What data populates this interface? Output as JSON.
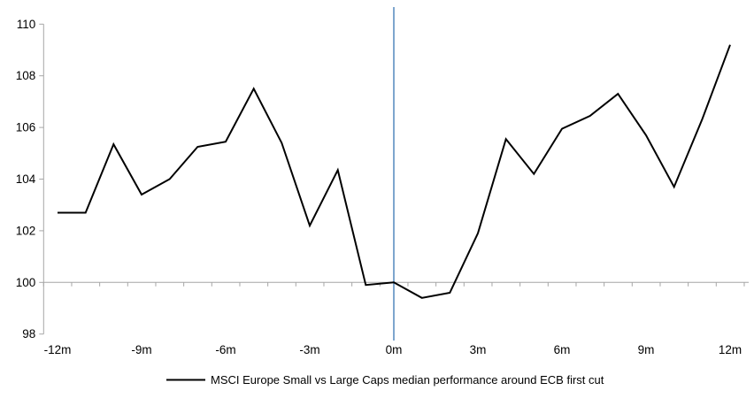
{
  "chart_data": {
    "type": "line",
    "title": "",
    "x_months": [
      -12,
      -11,
      -10,
      -9,
      -8,
      -7,
      -6,
      -5,
      -4,
      -3,
      -2,
      -1,
      0,
      1,
      2,
      3,
      4,
      5,
      6,
      7,
      8,
      9,
      10,
      11,
      12
    ],
    "series": [
      {
        "name": "MSCI Europe Small vs Large Caps median performance around ECB first cut",
        "color": "#000000",
        "values": [
          102.7,
          102.7,
          105.35,
          103.4,
          104.0,
          105.25,
          105.45,
          107.5,
          105.4,
          102.2,
          104.35,
          99.9,
          100.0,
          99.4,
          99.6,
          101.9,
          105.55,
          104.2,
          105.95,
          106.45,
          107.3,
          105.7,
          103.7,
          106.3,
          109.2
        ]
      }
    ],
    "x_tick_months": [
      -12,
      -9,
      -6,
      -3,
      0,
      3,
      6,
      9,
      12
    ],
    "x_tick_labels": [
      "-12m",
      "-9m",
      "-6m",
      "-3m",
      "0m",
      "3m",
      "6m",
      "9m",
      "12m"
    ],
    "yticks": [
      98,
      100,
      102,
      104,
      106,
      108,
      110
    ],
    "ylim": [
      98,
      110
    ],
    "baseline_value": 100,
    "event_line_at_month": 0,
    "legend_position": "bottom",
    "grid": "off",
    "colors": {
      "series_line": "#000000",
      "event_line": "#7ea6ce",
      "axis_line": "#a6a6a6",
      "text": "#000000"
    }
  }
}
